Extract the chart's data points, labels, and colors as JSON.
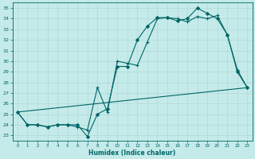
{
  "xlabel": "Humidex (Indice chaleur)",
  "ylabel": "",
  "background_color": "#c5eaea",
  "grid_color": "#aad4d4",
  "line_color": "#006666",
  "xlim": [
    -0.5,
    23.5
  ],
  "ylim": [
    22.5,
    35.5
  ],
  "xticks": [
    0,
    1,
    2,
    3,
    4,
    5,
    6,
    7,
    8,
    9,
    10,
    11,
    12,
    13,
    14,
    15,
    16,
    17,
    18,
    19,
    20,
    21,
    22,
    23
  ],
  "yticks": [
    23,
    24,
    25,
    26,
    27,
    28,
    29,
    30,
    31,
    32,
    33,
    34,
    35
  ],
  "series": [
    {
      "x": [
        0,
        1,
        2,
        3,
        4,
        5,
        6,
        7,
        8,
        9,
        10,
        11,
        12,
        13,
        14,
        15,
        16,
        17,
        18,
        19,
        20,
        21,
        22,
        23
      ],
      "y": [
        25.2,
        24.0,
        24.0,
        23.8,
        24.0,
        24.0,
        24.0,
        22.9,
        25.0,
        25.5,
        29.5,
        29.5,
        32.0,
        33.3,
        34.1,
        34.1,
        33.8,
        34.0,
        35.0,
        34.5,
        34.0,
        32.5,
        29.0,
        27.5
      ],
      "marker": "D",
      "markersize": 2.0,
      "linewidth": 0.8
    },
    {
      "x": [
        0,
        1,
        2,
        3,
        4,
        5,
        6,
        7,
        8,
        9,
        10,
        11,
        12,
        13,
        14,
        15,
        16,
        17,
        18,
        19,
        20,
        21,
        22,
        23
      ],
      "y": [
        25.2,
        24.0,
        24.0,
        23.8,
        24.0,
        24.0,
        23.8,
        23.5,
        27.5,
        25.2,
        30.0,
        29.8,
        29.6,
        31.8,
        34.0,
        34.1,
        34.0,
        33.7,
        34.2,
        34.0,
        34.3,
        32.5,
        29.2,
        27.5
      ],
      "marker": "+",
      "markersize": 3.5,
      "linewidth": 0.8
    },
    {
      "x": [
        0,
        23
      ],
      "y": [
        25.2,
        27.5
      ],
      "marker": null,
      "markersize": 0,
      "linewidth": 0.8
    }
  ]
}
